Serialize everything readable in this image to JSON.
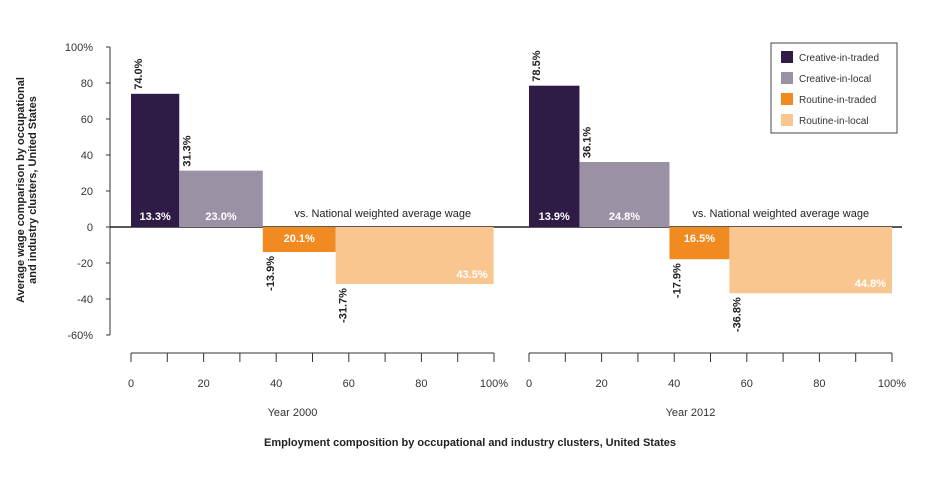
{
  "chart_data": {
    "type": "bar",
    "ylabel_lines": [
      "Average wage comparison by occupational",
      "and industry clusters, United States"
    ],
    "xlabel": "Employment composition by occupational and industry clusters, United States",
    "reference_label": "vs. National weighted average wage",
    "y_ticks": [
      "100%",
      "80",
      "60",
      "40",
      "20",
      "0",
      "-20",
      "-40",
      "-60%"
    ],
    "x_ticks": [
      "0",
      "20",
      "40",
      "60",
      "80",
      "100%"
    ],
    "ylim": [
      -60,
      100
    ],
    "xlim": [
      0,
      100
    ],
    "legend_position": "top-right",
    "legend": [
      {
        "name": "Creative-in-traded",
        "color": "#2e1c47"
      },
      {
        "name": "Creative-in-local",
        "color": "#9b91a5"
      },
      {
        "name": "Routine-in-traded",
        "color": "#f08a21"
      },
      {
        "name": "Routine-in-local",
        "color": "#f9c690"
      }
    ],
    "panels": [
      {
        "subtitle": "Year 2000",
        "bars": [
          {
            "series": "Creative-in-traded",
            "x_start": 0,
            "share": 13.3,
            "share_label": "13.3%",
            "value": 74.0,
            "value_label": "74.0%"
          },
          {
            "series": "Creative-in-local",
            "x_start": 13.3,
            "share": 23.0,
            "share_label": "23.0%",
            "value": 31.3,
            "value_label": "31.3%"
          },
          {
            "series": "Routine-in-traded",
            "x_start": 36.3,
            "share": 20.1,
            "share_label": "20.1%",
            "value": -13.9,
            "value_label": "-13.9%"
          },
          {
            "series": "Routine-in-local",
            "x_start": 56.4,
            "share": 43.5,
            "share_label": "43.5%",
            "value": -31.7,
            "value_label": "-31.7%"
          }
        ]
      },
      {
        "subtitle": "Year 2012",
        "bars": [
          {
            "series": "Creative-in-traded",
            "x_start": 0,
            "share": 13.9,
            "share_label": "13.9%",
            "value": 78.5,
            "value_label": "78.5%"
          },
          {
            "series": "Creative-in-local",
            "x_start": 13.9,
            "share": 24.8,
            "share_label": "24.8%",
            "value": 36.1,
            "value_label": "36.1%"
          },
          {
            "series": "Routine-in-traded",
            "x_start": 38.7,
            "share": 16.5,
            "share_label": "16.5%",
            "value": -17.9,
            "value_label": "-17.9%"
          },
          {
            "series": "Routine-in-local",
            "x_start": 55.2,
            "share": 44.8,
            "share_label": "44.8%",
            "value": -36.8,
            "value_label": "-36.8%"
          }
        ]
      }
    ]
  }
}
